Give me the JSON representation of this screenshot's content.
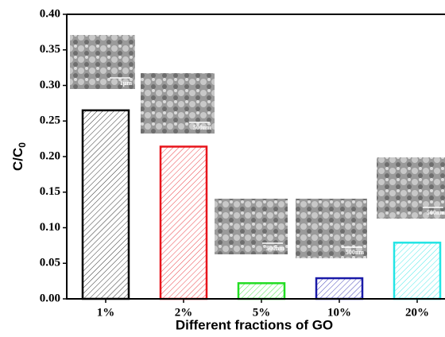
{
  "chart_data": {
    "type": "bar",
    "xlabel": "Different fractions of GO",
    "ylabel": "C/C",
    "ylabel_subscript": "0",
    "categories": [
      "1%",
      "2%",
      "5%",
      "10%",
      "20%"
    ],
    "values": [
      0.265,
      0.214,
      0.022,
      0.029,
      0.079
    ],
    "colors": [
      "#000000",
      "#e8141b",
      "#22dd22",
      "#1a1aa8",
      "#22e5e5"
    ],
    "hatch": true,
    "ylim": [
      0,
      0.4
    ],
    "yticks": [
      {
        "value": 0,
        "label": "0.00"
      },
      {
        "value": 0.05,
        "label": "0.05"
      },
      {
        "value": 0.1,
        "label": "0.10"
      },
      {
        "value": 0.15,
        "label": "0.15"
      },
      {
        "value": 0.2,
        "label": "0.20"
      },
      {
        "value": 0.25,
        "label": "0.25"
      },
      {
        "value": 0.3,
        "label": "0.30"
      },
      {
        "value": 0.35,
        "label": "0.35"
      },
      {
        "value": 0.4,
        "label": "0.40"
      }
    ],
    "insets": [
      {
        "scale_bar": "1μm"
      },
      {
        "scale_bar": "500nm"
      },
      {
        "scale_bar": "500nm"
      },
      {
        "scale_bar": "500nm"
      },
      {
        "scale_bar": "500nm"
      }
    ]
  }
}
